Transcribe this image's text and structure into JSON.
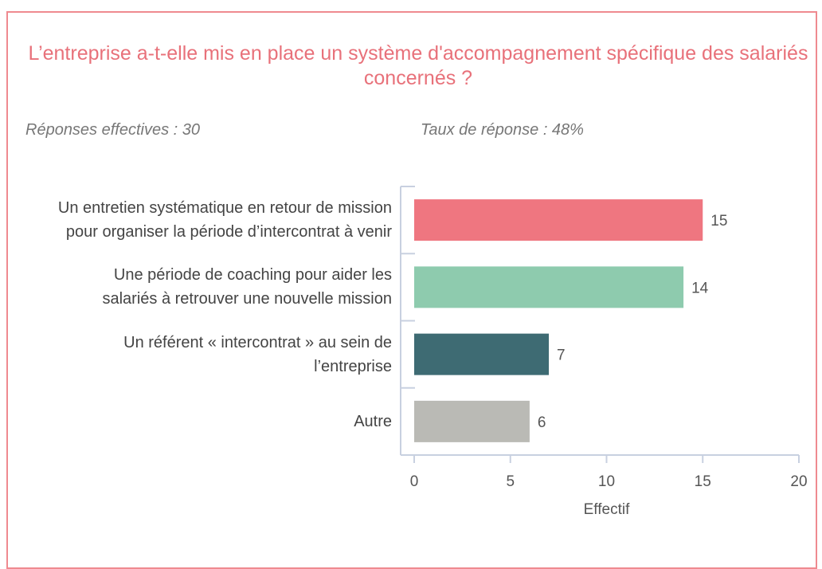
{
  "chart_data": {
    "type": "hbar",
    "title": "L’entreprise a-t-elle mis en place un système d'accompagnement spécifique des salariés concernés ?",
    "subtitle_left": "Réponses effectives : 30",
    "subtitle_right": "Taux de réponse : 48%",
    "categories": [
      "Un entretien systématique en retour de mission pour organiser la période d’intercontrat à venir",
      "Une période de coaching pour aider les salariés à retrouver une nouvelle mission",
      "Un référent « intercontrat » au sein de l’entreprise",
      "Autre"
    ],
    "values": [
      15,
      14,
      7,
      6
    ],
    "colors": [
      "#ef7680",
      "#8ecbae",
      "#3e6b73",
      "#babab5"
    ],
    "xlim": [
      0,
      20
    ],
    "xticks": [
      0,
      5,
      10,
      15,
      20
    ],
    "xlabel": "Effectif",
    "grid": false
  }
}
